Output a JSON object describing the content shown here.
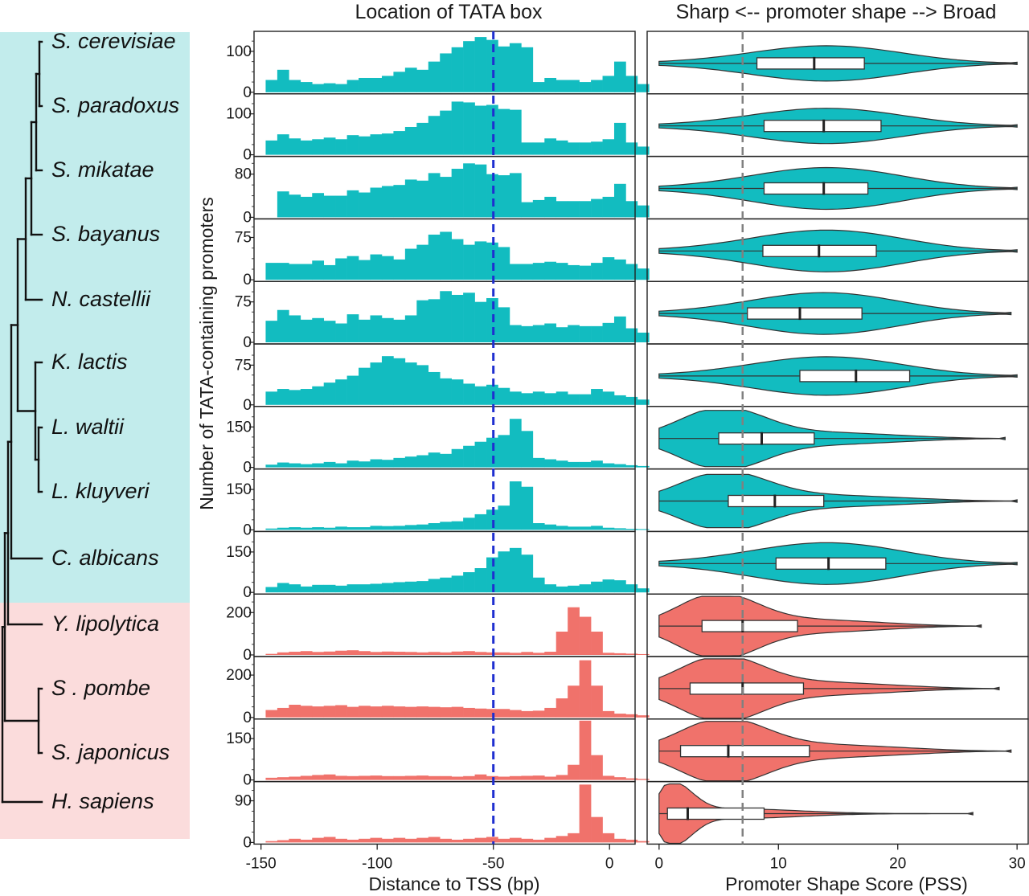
{
  "colors": {
    "fungi_panel": "#c2ecec",
    "outgroup_panel": "#fbdcdc",
    "teal": "#12bcc0",
    "salmon": "#f0726b",
    "tss_line": "#1f2fd0",
    "ref_line": "#808080"
  },
  "species": [
    "S.  cerevisiae",
    "S. paradoxus",
    "S. mikatae",
    "S. bayanus",
    "N. castellii",
    "K. lactis",
    "L. waltii",
    "L. kluyveri",
    "C. albicans",
    "Y. lipolytica",
    "S . pombe",
    "S. japonicus",
    "H. sapiens"
  ],
  "chart_data": [
    {
      "type": "bar",
      "title": "Location of TATA  box",
      "xlabel": "Distance  to TSS (bp)",
      "ylabel": "Number of TATA-containing promoters",
      "x_ticks": [
        -150,
        -100,
        -50,
        0
      ],
      "xlim": [
        -153,
        11
      ],
      "bin_start": -148,
      "bin_width": 5,
      "reference_line_x": -50,
      "series": [
        {
          "name": "S.  cerevisiae",
          "color": "teal",
          "y_ticks": [
            0,
            100
          ],
          "ylim": [
            0,
            145
          ],
          "values": [
            30,
            55,
            30,
            25,
            20,
            22,
            20,
            30,
            35,
            35,
            40,
            50,
            60,
            55,
            75,
            95,
            110,
            125,
            135,
            128,
            112,
            120,
            110,
            25,
            35,
            30,
            30,
            25,
            30,
            40,
            75,
            40,
            20
          ]
        },
        {
          "name": "S. paradoxus",
          "color": "teal",
          "y_ticks": [
            0,
            100
          ],
          "ylim": [
            0,
            145
          ],
          "values": [
            35,
            50,
            40,
            35,
            38,
            42,
            38,
            48,
            45,
            50,
            52,
            58,
            68,
            78,
            95,
            108,
            130,
            128,
            120,
            122,
            112,
            110,
            30,
            30,
            40,
            35,
            30,
            30,
            32,
            38,
            78,
            30,
            20
          ]
        },
        {
          "name": "S. mikatae",
          "color": "teal",
          "y_ticks": [
            0,
            80
          ],
          "ylim": [
            0,
            110
          ],
          "values": [
            0,
            48,
            42,
            38,
            45,
            40,
            40,
            50,
            46,
            55,
            58,
            60,
            70,
            68,
            82,
            75,
            90,
            100,
            98,
            80,
            78,
            82,
            28,
            32,
            38,
            30,
            30,
            30,
            34,
            38,
            62,
            30,
            22
          ]
        },
        {
          "name": "S. bayanus",
          "color": "teal",
          "y_ticks": [
            0,
            75
          ],
          "ylim": [
            0,
            105
          ],
          "values": [
            30,
            30,
            28,
            28,
            34,
            26,
            38,
            42,
            35,
            45,
            42,
            36,
            55,
            62,
            80,
            85,
            72,
            62,
            68,
            66,
            58,
            28,
            28,
            30,
            32,
            30,
            26,
            25,
            30,
            40,
            36,
            28,
            20
          ]
        },
        {
          "name": "N. castellii",
          "color": "teal",
          "y_ticks": [
            0,
            75
          ],
          "ylim": [
            0,
            110
          ],
          "values": [
            40,
            60,
            50,
            42,
            45,
            40,
            35,
            52,
            42,
            50,
            45,
            42,
            50,
            78,
            80,
            95,
            88,
            92,
            75,
            82,
            65,
            32,
            30,
            32,
            35,
            28,
            32,
            30,
            30,
            36,
            48,
            26,
            18
          ]
        },
        {
          "name": "K. lactis",
          "color": "teal",
          "y_ticks": [
            0,
            75
          ],
          "ylim": [
            0,
            112
          ],
          "values": [
            25,
            30,
            28,
            30,
            35,
            42,
            48,
            55,
            70,
            80,
            92,
            88,
            80,
            75,
            62,
            50,
            48,
            40,
            35,
            38,
            32,
            25,
            22,
            25,
            22,
            25,
            20,
            20,
            30,
            25,
            18,
            15,
            10
          ]
        },
        {
          "name": "L. waltii",
          "color": "teal",
          "y_ticks": [
            0,
            150
          ],
          "ylim": [
            0,
            220
          ],
          "values": [
            10,
            18,
            15,
            12,
            15,
            20,
            15,
            25,
            22,
            30,
            28,
            35,
            40,
            45,
            55,
            50,
            68,
            80,
            95,
            110,
            120,
            180,
            135,
            35,
            30,
            25,
            20,
            20,
            25,
            15,
            12,
            8,
            5
          ]
        },
        {
          "name": "L. kluyveri",
          "color": "teal",
          "y_ticks": [
            0,
            150
          ],
          "ylim": [
            0,
            220
          ],
          "values": [
            5,
            8,
            10,
            8,
            10,
            8,
            12,
            10,
            10,
            15,
            14,
            15,
            18,
            20,
            25,
            30,
            32,
            45,
            58,
            75,
            90,
            180,
            160,
            25,
            20,
            15,
            12,
            12,
            15,
            8,
            6,
            4,
            3
          ]
        },
        {
          "name": "C. albicans",
          "color": "teal",
          "y_ticks": [
            0,
            150
          ],
          "ylim": [
            0,
            220
          ],
          "values": [
            20,
            35,
            30,
            22,
            28,
            28,
            25,
            30,
            30,
            32,
            35,
            38,
            40,
            42,
            50,
            55,
            62,
            75,
            90,
            130,
            152,
            165,
            140,
            55,
            30,
            22,
            25,
            30,
            40,
            48,
            45,
            30,
            15
          ]
        },
        {
          "name": "Y. lipolytica",
          "color": "salmon",
          "y_ticks": [
            0,
            200
          ],
          "ylim": [
            0,
            280
          ],
          "values": [
            5,
            12,
            15,
            18,
            14,
            16,
            20,
            22,
            18,
            14,
            16,
            15,
            14,
            12,
            14,
            12,
            16,
            18,
            14,
            12,
            12,
            10,
            14,
            10,
            15,
            110,
            225,
            180,
            110,
            10,
            8,
            6,
            4
          ]
        },
        {
          "name": "S . pombe",
          "color": "salmon",
          "y_ticks": [
            0,
            200
          ],
          "ylim": [
            0,
            280
          ],
          "values": [
            35,
            45,
            60,
            55,
            52,
            55,
            58,
            50,
            55,
            52,
            55,
            52,
            50,
            52,
            50,
            48,
            50,
            45,
            42,
            40,
            40,
            35,
            30,
            32,
            45,
            90,
            150,
            270,
            150,
            30,
            18,
            15,
            10
          ]
        },
        {
          "name": "S. japonicus",
          "color": "salmon",
          "y_ticks": [
            0,
            150
          ],
          "ylim": [
            0,
            215
          ],
          "values": [
            8,
            10,
            12,
            15,
            18,
            20,
            15,
            14,
            15,
            16,
            14,
            14,
            15,
            16,
            14,
            14,
            12,
            14,
            20,
            14,
            12,
            14,
            15,
            16,
            12,
            18,
            55,
            215,
            90,
            15,
            10,
            6,
            4
          ]
        },
        {
          "name": "H. sapiens",
          "color": "salmon",
          "y_ticks": [
            0,
            90
          ],
          "ylim": [
            0,
            128
          ],
          "values": [
            3,
            5,
            8,
            6,
            10,
            12,
            8,
            6,
            8,
            10,
            8,
            10,
            8,
            10,
            12,
            8,
            6,
            8,
            10,
            12,
            8,
            10,
            8,
            6,
            10,
            14,
            20,
            125,
            55,
            20,
            8,
            6,
            3
          ]
        }
      ]
    },
    {
      "type": "violin",
      "title": "Sharp <-- promoter shape --> Broad",
      "xlabel": "Promoter Shape Score (PSS)",
      "x_ticks": [
        0,
        10,
        20,
        30
      ],
      "xlim": [
        -1,
        31
      ],
      "reference_line_x": 7,
      "series": [
        {
          "name": "S.  cerevisiae",
          "color": "teal",
          "min": 0,
          "max": 30,
          "q1": 8.2,
          "median": 13,
          "q3": 17.2,
          "shape": "symmetric",
          "width": 0.55
        },
        {
          "name": "S. paradoxus",
          "color": "teal",
          "min": 0,
          "max": 30,
          "q1": 8.8,
          "median": 13.8,
          "q3": 18.6,
          "shape": "symmetric",
          "width": 0.55
        },
        {
          "name": "S. mikatae",
          "color": "teal",
          "min": 0,
          "max": 30,
          "q1": 8.8,
          "median": 13.8,
          "q3": 17.5,
          "shape": "symmetric",
          "width": 0.65
        },
        {
          "name": "S. bayanus",
          "color": "teal",
          "min": 0,
          "max": 30,
          "q1": 8.7,
          "median": 13.4,
          "q3": 18.2,
          "shape": "symmetric",
          "width": 0.65
        },
        {
          "name": "N. castellii",
          "color": "teal",
          "min": 0,
          "max": 29.5,
          "q1": 7.4,
          "median": 11.8,
          "q3": 17,
          "shape": "symmetric",
          "width": 0.65
        },
        {
          "name": "K. lactis",
          "color": "teal",
          "min": 0,
          "max": 30,
          "q1": 11.8,
          "median": 16.5,
          "q3": 21,
          "shape": "symmetric",
          "width": 0.6
        },
        {
          "name": "L. waltii",
          "color": "teal",
          "min": 0,
          "max": 29,
          "q1": 5,
          "median": 8.6,
          "q3": 13,
          "shape": "right-skewed",
          "width": 0.9
        },
        {
          "name": "L. kluyveri",
          "color": "teal",
          "min": 0,
          "max": 30,
          "q1": 5.8,
          "median": 9.7,
          "q3": 13.8,
          "shape": "right-skewed",
          "width": 0.85
        },
        {
          "name": "C. albicans",
          "color": "teal",
          "min": 0,
          "max": 30,
          "q1": 9.8,
          "median": 14.2,
          "q3": 19,
          "shape": "symmetric",
          "width": 0.65
        },
        {
          "name": "Y. lipolytica",
          "color": "salmon",
          "min": 0,
          "max": 27,
          "q1": 3.6,
          "median": 7,
          "q3": 11.6,
          "shape": "right-skewed",
          "width": 0.95
        },
        {
          "name": "S . pombe",
          "color": "salmon",
          "min": 0,
          "max": 28.5,
          "q1": 2.6,
          "median": 7,
          "q3": 12.1,
          "shape": "right-skewed",
          "width": 0.95
        },
        {
          "name": "S. japonicus",
          "color": "salmon",
          "min": 0,
          "max": 29.5,
          "q1": 1.8,
          "median": 5.8,
          "q3": 12.6,
          "shape": "right-skewed",
          "width": 0.95
        },
        {
          "name": "H. sapiens",
          "color": "salmon",
          "min": 0,
          "max": 26.3,
          "q1": 0.7,
          "median": 2.4,
          "q3": 8.8,
          "shape": "left-peaked",
          "width": 0.95
        }
      ]
    }
  ]
}
